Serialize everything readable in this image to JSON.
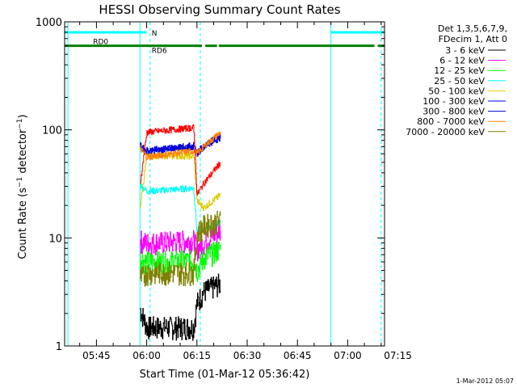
{
  "chart_data": {
    "type": "line",
    "title": "HESSI Observing Summary Count Rates",
    "xlabel": "Start Time (01-Mar-12 05:36:42)",
    "ylabel": "Count Rate (s⁻¹ detector⁻¹)",
    "y_scale": "log",
    "ylim": [
      1,
      1000
    ],
    "xlim_minutes": [
      5.5,
      101
    ],
    "x_ticks": [
      {
        "label": "05:45",
        "min": 15
      },
      {
        "label": "06:00",
        "min": 30
      },
      {
        "label": "06:15",
        "min": 45
      },
      {
        "label": "06:30",
        "min": 60
      },
      {
        "label": "06:45",
        "min": 75
      },
      {
        "label": "07:00",
        "min": 90
      },
      {
        "label": "07:15",
        "min": 105
      }
    ],
    "y_ticks": [
      {
        "label": "1",
        "value": 1
      },
      {
        "label": "10",
        "value": 10
      },
      {
        "label": "100",
        "value": 100
      },
      {
        "label": "1000",
        "value": 1000
      }
    ],
    "legend": {
      "position": "top-right",
      "header": [
        "Det 1,3,5,6,7,9,",
        "FDecim 1, Att 0"
      ]
    },
    "series": [
      {
        "name": "3 - 6 keV",
        "color": "#000000",
        "x": [
          28,
          30,
          44,
          45,
          47,
          52
        ],
        "y": [
          2.2,
          1.5,
          1.5,
          2.5,
          3.2,
          3.8
        ]
      },
      {
        "name": "6 - 12 keV",
        "color": "#ff00ff",
        "x": [
          28,
          30,
          44,
          45,
          47,
          52
        ],
        "y": [
          9.5,
          9,
          9.5,
          8,
          9,
          12
        ]
      },
      {
        "name": "12 - 25 keV",
        "color": "#00ff00",
        "x": [
          28,
          30,
          44,
          45,
          47,
          52
        ],
        "y": [
          6.5,
          6,
          6.2,
          5,
          6.5,
          8
        ]
      },
      {
        "name": "25 - 50 keV",
        "color": "#00ffff",
        "x": [
          28,
          30,
          44,
          45,
          47,
          52
        ],
        "y": [
          31,
          27,
          29,
          11,
          12,
          14
        ]
      },
      {
        "name": "50 - 100 keV",
        "color": "#ddcc00",
        "x": [
          28,
          30,
          44,
          45,
          47,
          52
        ],
        "y": [
          19,
          58,
          57,
          22,
          19,
          25
        ]
      },
      {
        "name": "100 - 300 keV",
        "color": "#0000ff",
        "x": [
          28,
          30,
          44,
          45,
          47,
          52
        ],
        "y": [
          70,
          63,
          72,
          60,
          70,
          85
        ]
      },
      {
        "name": "300 - 800 keV",
        "color": "#0000cc",
        "x": [
          28,
          30,
          44,
          45,
          47,
          52
        ],
        "y": [
          72,
          65,
          70,
          62,
          72,
          88
        ]
      },
      {
        "name": "800 - 7000 keV",
        "color": "#ff8000",
        "x": [
          28,
          30,
          44,
          45,
          47,
          52
        ],
        "y": [
          68,
          56,
          64,
          60,
          70,
          95
        ]
      },
      {
        "name": "7000 - 20000 keV",
        "color": "#808000",
        "x": [
          28,
          30,
          44,
          45,
          47,
          52
        ],
        "y": [
          4.2,
          4.8,
          4.8,
          11,
          13,
          14.5
        ]
      }
    ],
    "red_series": {
      "color": "#ff0000",
      "x": [
        28,
        30,
        44,
        45,
        47,
        52
      ],
      "y": [
        31,
        95,
        105,
        25,
        32,
        50
      ]
    },
    "flag_bars": [
      {
        "label": "N",
        "color": "#00ffff",
        "value": 800,
        "segments": [
          [
            5.5,
            30
          ],
          [
            85,
            101
          ]
        ]
      },
      {
        "label": "RD0",
        "color": "#008000",
        "value": 600,
        "segments": [
          [
            5.5,
            28
          ],
          [
            28,
            46.5
          ],
          [
            47.5,
            51
          ],
          [
            51.5,
            98
          ],
          [
            99,
            101
          ]
        ]
      },
      {
        "label": "RD6",
        "color": "#008000",
        "value": 560,
        "segments": []
      }
    ],
    "vertical_markers": [
      {
        "min": 6.5,
        "style": "solid",
        "color": "#00ffff"
      },
      {
        "min": 28,
        "style": "solid",
        "color": "#00ffff"
      },
      {
        "min": 31,
        "style": "dashed",
        "color": "#00ffff"
      },
      {
        "min": 46,
        "style": "dashed",
        "color": "#00ffff"
      },
      {
        "min": 85,
        "style": "solid",
        "color": "#00ffff"
      },
      {
        "min": 100,
        "style": "dashed",
        "color": "#00ffff"
      }
    ],
    "timestamp": "1-Mar-2012 05:07"
  }
}
